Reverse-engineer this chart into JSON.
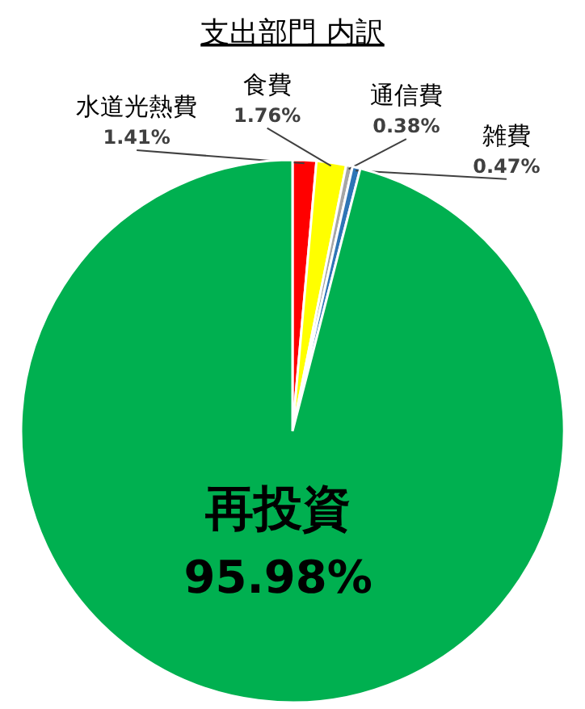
{
  "chart_data": {
    "type": "pie",
    "title": "支出部門 内訳",
    "categories": [
      "水道光熱費",
      "食費",
      "通信費",
      "雑費",
      "再投資"
    ],
    "values": [
      1.41,
      1.76,
      0.38,
      0.47,
      95.98
    ],
    "colors": [
      "#ff0000",
      "#ffff00",
      "#a6a6a6",
      "#2e75b6",
      "#00b050"
    ],
    "value_labels": [
      "1.41%",
      "1.76%",
      "0.38%",
      "0.47%",
      "95.98%"
    ],
    "legend": false
  }
}
